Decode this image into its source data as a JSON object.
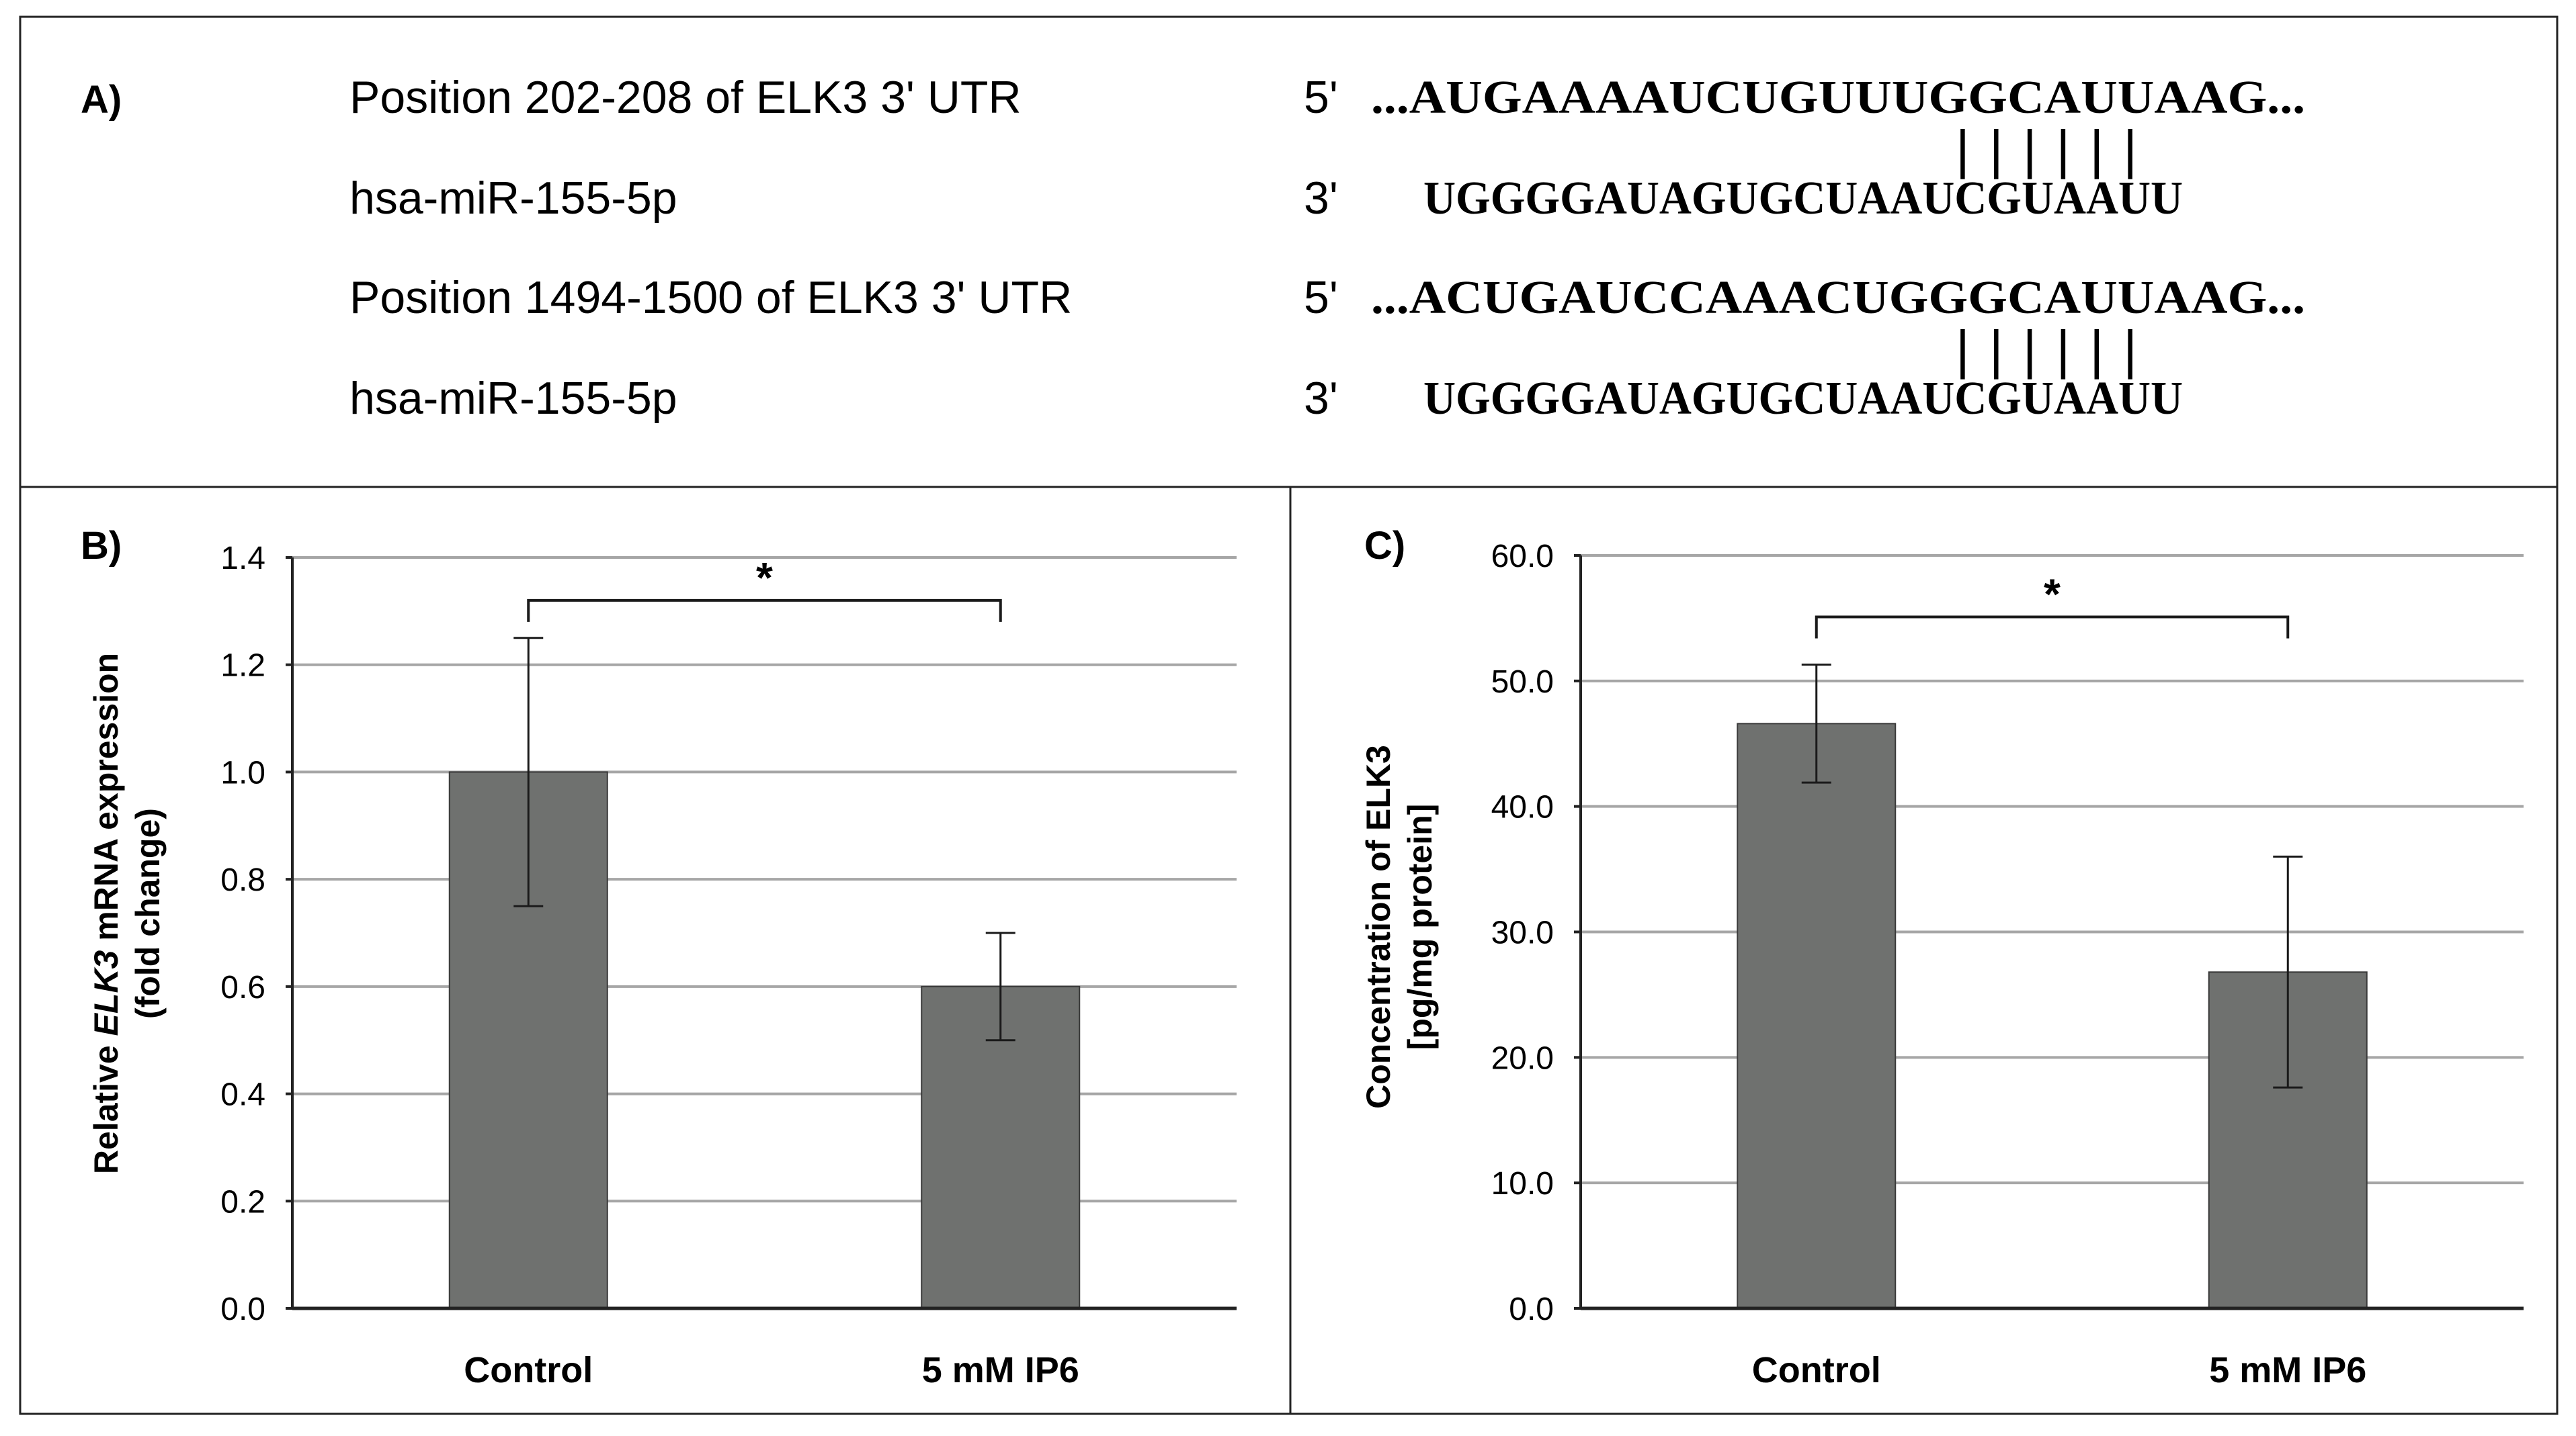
{
  "panel_a": {
    "label": "A)",
    "rows": [
      {
        "name": "Position  202-208 of ELK3 3' UTR",
        "prime": "5'",
        "seq": "...AUGAAAAUCUGUUUGGCAUUAAG...",
        "pairs": "||||||"
      },
      {
        "name": "hsa-miR-155-5p",
        "prime": "3'",
        "seq": "UGGGGAUAGUGCUAAUCGUAAUU"
      },
      {
        "name": "Position  1494-1500 of ELK3 3' UTR",
        "prime": "5'",
        "seq": "...ACUGAUCCAAACUGGGCAUUAAG...",
        "pairs": "||||||"
      },
      {
        "name": "hsa-miR-155-5p",
        "prime": "3'",
        "seq": "UGGGGAUAGUGCUAAUCGUAAUU"
      }
    ]
  },
  "chart_data": [
    {
      "type": "bar",
      "panel_label": "B)",
      "categories": [
        "Control",
        "5 mM IP6"
      ],
      "values": [
        1.0,
        0.6
      ],
      "error_bars": [
        0.25,
        0.1
      ],
      "ylabel_pre": "Relative ",
      "ylabel_italic": "ELK3",
      "ylabel_post": " mRNA expression",
      "ylabel_line2": "(fold change)",
      "ylim": [
        0,
        1.4
      ],
      "yticks": [
        "0.0",
        "0.2",
        "0.4",
        "0.6",
        "0.8",
        "1.0",
        "1.2",
        "1.4"
      ],
      "grid": true,
      "significance": {
        "from": "Control",
        "to": "5 mM IP6",
        "label": "*",
        "level": 1.32
      },
      "bar_color": "#6f716f"
    },
    {
      "type": "bar",
      "panel_label": "C)",
      "categories": [
        "Control",
        "5 mM IP6"
      ],
      "values": [
        46.6,
        26.8
      ],
      "error_bars": [
        4.7,
        9.2
      ],
      "ylabel": "Concentration  of ELK3",
      "ylabel_line2": "[pg/mg protein]",
      "ylim": [
        0,
        60
      ],
      "yticks": [
        "0.0",
        "10.0",
        "20.0",
        "30.0",
        "40.0",
        "50.0",
        "60.0"
      ],
      "grid": true,
      "significance": {
        "from": "Control",
        "to": "5 mM IP6",
        "label": "*",
        "level": 55.1
      },
      "bar_color": "#6f716f"
    }
  ]
}
